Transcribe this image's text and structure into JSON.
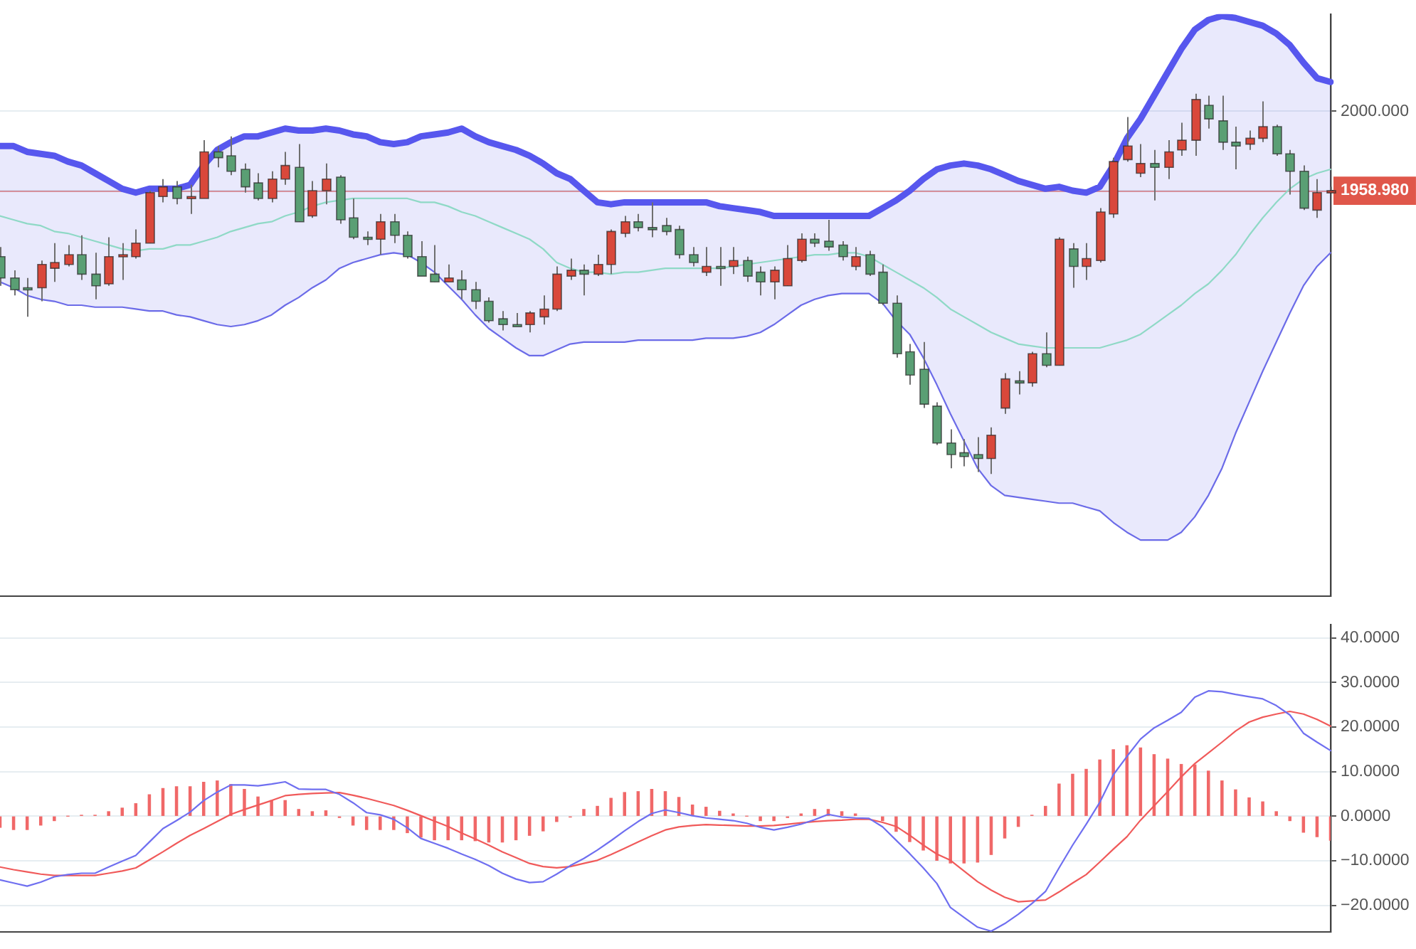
{
  "chart_data": [
    {
      "type": "candlestick",
      "categories": [
        null,
        null,
        null,
        null,
        null,
        null,
        null,
        null,
        null,
        null,
        null,
        null,
        null,
        null,
        null,
        null,
        null,
        null,
        null,
        null,
        null,
        null,
        null,
        null,
        null,
        null,
        null,
        null,
        null,
        null,
        null,
        null,
        null,
        null,
        null,
        null,
        null,
        null,
        null,
        null,
        null,
        null,
        null,
        null,
        null,
        null,
        null,
        null,
        null,
        null,
        null,
        null,
        null,
        null,
        null,
        null,
        null,
        null,
        null,
        null,
        null,
        null,
        null,
        null,
        null,
        null,
        null,
        null,
        null,
        null,
        null,
        null,
        null,
        null,
        null,
        null,
        null,
        null,
        null,
        null,
        null,
        null,
        null,
        null,
        null,
        null,
        null,
        null,
        null,
        null,
        null,
        null,
        null,
        null,
        null,
        null,
        null,
        null,
        null
      ],
      "ohlc": [
        [
          1925,
          1930,
          1910,
          1914
        ],
        [
          1914,
          1918,
          1905,
          1908
        ],
        [
          1909,
          1914,
          1894,
          1908
        ],
        [
          1909,
          1923,
          1902,
          1921
        ],
        [
          1919,
          1932,
          1912,
          1922
        ],
        [
          1921,
          1931,
          1920,
          1926
        ],
        [
          1926,
          1936,
          1913,
          1916
        ],
        [
          1916,
          1927,
          1903,
          1910
        ],
        [
          1911,
          1935,
          1910,
          1925
        ],
        [
          1925,
          1932,
          1913,
          1926
        ],
        [
          1925,
          1939,
          1924,
          1932
        ],
        [
          1932,
          1959,
          1932,
          1958
        ],
        [
          1956,
          1965,
          1953,
          1961
        ],
        [
          1961,
          1964,
          1952,
          1955
        ],
        [
          1955,
          1962,
          1947,
          1956
        ],
        [
          1955,
          1985,
          1955,
          1979
        ],
        [
          1979,
          1982,
          1971,
          1976
        ],
        [
          1977,
          1987,
          1967,
          1969
        ],
        [
          1970,
          1973,
          1958,
          1961
        ],
        [
          1963,
          1968,
          1954,
          1955
        ],
        [
          1955,
          1969,
          1953,
          1965
        ],
        [
          1965,
          1979,
          1962,
          1972
        ],
        [
          1971,
          1983,
          1943,
          1943
        ],
        [
          1946,
          1964,
          1945,
          1959
        ],
        [
          1959,
          1973,
          1952,
          1965
        ],
        [
          1966,
          1967,
          1942,
          1944
        ],
        [
          1945,
          1955,
          1934,
          1935
        ],
        [
          1935,
          1938,
          1931,
          1935
        ],
        [
          1934,
          1947,
          1926,
          1943
        ],
        [
          1943,
          1947,
          1932,
          1936
        ],
        [
          1936,
          1938,
          1924,
          1925
        ],
        [
          1925,
          1933,
          1915,
          1915
        ],
        [
          1916,
          1931,
          1912,
          1912
        ],
        [
          1912,
          1921,
          1912,
          1914
        ],
        [
          1913,
          1918,
          1903,
          1908
        ],
        [
          1908,
          1912,
          1898,
          1902
        ],
        [
          1902,
          1904,
          1891,
          1892
        ],
        [
          1893,
          1897,
          1887,
          1890
        ],
        [
          1890,
          1896,
          1889,
          1890
        ],
        [
          1890,
          1897,
          1886,
          1896
        ],
        [
          1894,
          1905,
          1890,
          1898
        ],
        [
          1898,
          1920,
          1897,
          1916
        ],
        [
          1915,
          1924,
          1913,
          1918
        ],
        [
          1918,
          1921,
          1905,
          1916
        ],
        [
          1916,
          1926,
          1915,
          1921
        ],
        [
          1921,
          1939,
          1916,
          1938
        ],
        [
          1937,
          1946,
          1935,
          1943
        ],
        [
          1943,
          1947,
          1938,
          1940
        ],
        [
          1940,
          1953,
          1935,
          1940
        ],
        [
          1941,
          1945,
          1936,
          1938
        ],
        [
          1939,
          1941,
          1924,
          1926
        ],
        [
          1926,
          1930,
          1920,
          1922
        ],
        [
          1917,
          1930,
          1915,
          1920
        ],
        [
          1920,
          1930,
          1910,
          1920
        ],
        [
          1920,
          1930,
          1916,
          1923
        ],
        [
          1923,
          1925,
          1912,
          1915
        ],
        [
          1917,
          1920,
          1905,
          1912
        ],
        [
          1912,
          1920,
          1903,
          1918
        ],
        [
          1910,
          1931,
          1910,
          1924
        ],
        [
          1923,
          1937,
          1922,
          1934
        ],
        [
          1934,
          1937,
          1930,
          1932
        ],
        [
          1933,
          1944,
          1928,
          1930
        ],
        [
          1931,
          1933,
          1923,
          1925
        ],
        [
          1920,
          1930,
          1918,
          1925
        ],
        [
          1926,
          1928,
          1915,
          1916
        ],
        [
          1917,
          1921,
          1900,
          1901
        ],
        [
          1901,
          1905,
          1873,
          1875
        ],
        [
          1876,
          1880,
          1859,
          1864
        ],
        [
          1867,
          1881,
          1847,
          1849
        ],
        [
          1848,
          1850,
          1828,
          1829
        ],
        [
          1829,
          1836,
          1816,
          1823
        ],
        [
          1824,
          1831,
          1817,
          1822
        ],
        [
          1823,
          1832,
          1814,
          1821
        ],
        [
          1821,
          1837,
          1813,
          1833
        ],
        [
          1847,
          1865,
          1844,
          1862
        ],
        [
          1861,
          1866,
          1854,
          1861
        ],
        [
          1860,
          1876,
          1858,
          1875
        ],
        [
          1875,
          1886,
          1868,
          1869
        ],
        [
          1869,
          1935,
          1869,
          1934
        ],
        [
          1929,
          1932,
          1909,
          1920
        ],
        [
          1920,
          1932,
          1913,
          1924
        ],
        [
          1923,
          1950,
          1922,
          1948
        ],
        [
          1947,
          1976,
          1945,
          1974
        ],
        [
          1975,
          1997,
          1974,
          1982
        ],
        [
          1968,
          1983,
          1966,
          1973
        ],
        [
          1973,
          1980,
          1954,
          1971
        ],
        [
          1971,
          1985,
          1965,
          1979
        ],
        [
          1980,
          1994,
          1977,
          1985
        ],
        [
          1985,
          2009,
          1977,
          2006
        ],
        [
          2003,
          2008,
          1991,
          1996
        ],
        [
          1995,
          2008,
          1980,
          1984
        ],
        [
          1984,
          1992,
          1970,
          1982
        ],
        [
          1983,
          1990,
          1980,
          1986
        ],
        [
          1986,
          2005,
          1984,
          1992
        ],
        [
          1992,
          1993,
          1977,
          1978
        ],
        [
          1978,
          1980,
          1957,
          1969
        ],
        [
          1969,
          1972,
          1949,
          1950
        ],
        [
          1949,
          1965,
          1945,
          1958
        ],
        [
          1958.5,
          1961,
          1958,
          1958.98
        ]
      ],
      "colors": [
        "#5a9f74",
        "#5a9f74",
        "#5a9f74",
        "#d9483b",
        "#d9483b",
        "#d9483b",
        "#5a9f74",
        "#5a9f74",
        "#d9483b",
        "#d9483b",
        "#d9483b",
        "#d9483b",
        "#d9483b",
        "#5a9f74",
        "#d9483b",
        "#d9483b",
        "#5a9f74",
        "#5a9f74",
        "#5a9f74",
        "#5a9f74",
        "#d9483b",
        "#d9483b",
        "#5a9f74",
        "#d9483b",
        "#d9483b",
        "#5a9f74",
        "#5a9f74",
        "#5a9f74",
        "#d9483b",
        "#5a9f74",
        "#5a9f74",
        "#5a9f74",
        "#5a9f74",
        "#d9483b",
        "#5a9f74",
        "#5a9f74",
        "#5a9f74",
        "#5a9f74",
        "#5a9f74",
        "#d9483b",
        "#d9483b",
        "#d9483b",
        "#d9483b",
        "#5a9f74",
        "#d9483b",
        "#d9483b",
        "#d9483b",
        "#5a9f74",
        "#5a9f74",
        "#5a9f74",
        "#5a9f74",
        "#5a9f74",
        "#d9483b",
        "#5a9f74",
        "#d9483b",
        "#5a9f74",
        "#5a9f74",
        "#d9483b",
        "#d9483b",
        "#d9483b",
        "#5a9f74",
        "#5a9f74",
        "#5a9f74",
        "#d9483b",
        "#5a9f74",
        "#5a9f74",
        "#5a9f74",
        "#5a9f74",
        "#5a9f74",
        "#5a9f74",
        "#5a9f74",
        "#5a9f74",
        "#5a9f74",
        "#d9483b",
        "#d9483b",
        "#5a9f74",
        "#d9483b",
        "#5a9f74",
        "#d9483b",
        "#5a9f74",
        "#d9483b",
        "#d9483b",
        "#d9483b",
        "#d9483b",
        "#d9483b",
        "#5a9f74",
        "#d9483b",
        "#d9483b",
        "#d9483b",
        "#5a9f74",
        "#5a9f74",
        "#5a9f74",
        "#d9483b",
        "#d9483b",
        "#5a9f74",
        "#5a9f74",
        "#5a9f74",
        "#d9483b",
        "#d9483b"
      ],
      "series": [
        {
          "type": "line",
          "color": "#5757ee",
          "values": [
            1982,
            1982,
            1979,
            1978,
            1977,
            1974,
            1972,
            1968,
            1964,
            1960,
            1958,
            1960,
            1960,
            1960,
            1962,
            1972,
            1980,
            1984,
            1987,
            1987,
            1989,
            1991,
            1990,
            1990,
            1991,
            1990,
            1988,
            1987,
            1984,
            1983,
            1984,
            1987,
            1988,
            1989,
            1991,
            1987,
            1984,
            1982,
            1980,
            1977,
            1973,
            1968,
            1965,
            1959,
            1953,
            1952,
            1953,
            1953,
            1953,
            1953,
            1953,
            1953,
            1953,
            1951,
            1950,
            1949,
            1948,
            1946,
            1946,
            1946,
            1946,
            1946,
            1946,
            1946,
            1946,
            1950,
            1954,
            1959,
            1965,
            1970,
            1972,
            1973,
            1972,
            1970,
            1967,
            1964,
            1962,
            1960,
            1961,
            1959,
            1958,
            1961,
            1972,
            1986,
            1996,
            2008,
            2020,
            2032,
            2042,
            2047,
            2049,
            2048,
            2046,
            2044,
            2040,
            2034,
            2025,
            2017,
            2015
          ]
        },
        {
          "type": "line",
          "color": "#8fd9c6",
          "values": [
            1946,
            1944,
            1942,
            1941,
            1938,
            1937,
            1935,
            1933,
            1931,
            1929,
            1928,
            1929,
            1929,
            1931,
            1931,
            1933,
            1935,
            1938,
            1940,
            1942,
            1943,
            1946,
            1948,
            1951,
            1953,
            1954,
            1955,
            1955,
            1955,
            1955,
            1955,
            1953,
            1953,
            1951,
            1948,
            1946,
            1943,
            1940,
            1937,
            1934,
            1929,
            1922,
            1919,
            1917,
            1917,
            1916,
            1917,
            1917,
            1918,
            1919,
            1919,
            1919,
            1919,
            1919,
            1920,
            1921,
            1922,
            1923,
            1924,
            1925,
            1926,
            1926,
            1927,
            1927,
            1925,
            1921,
            1917,
            1913,
            1909,
            1904,
            1898,
            1894,
            1890,
            1886,
            1883,
            1880,
            1879,
            1878,
            1878,
            1878,
            1878,
            1878,
            1880,
            1882,
            1885,
            1890,
            1895,
            1900,
            1906,
            1911,
            1918,
            1926,
            1936,
            1945,
            1953,
            1960,
            1965,
            1968,
            1970
          ],
          "upper": [
            1982,
            1982,
            1979,
            1978,
            1977,
            1974,
            1972,
            1968,
            1964,
            1960,
            1958,
            1960,
            1960,
            1960,
            1962,
            1972,
            1980,
            1984,
            1987,
            1987,
            1989,
            1991,
            1990,
            1990,
            1991,
            1990,
            1988,
            1987,
            1984,
            1983,
            1984,
            1987,
            1988,
            1989,
            1991,
            1987,
            1984,
            1982,
            1980,
            1977,
            1973,
            1968,
            1965,
            1959,
            1953,
            1952,
            1953,
            1953,
            1953,
            1953,
            1953,
            1953,
            1953,
            1951,
            1950,
            1949,
            1948,
            1946,
            1946,
            1946,
            1946,
            1946,
            1946,
            1946,
            1946,
            1950,
            1954,
            1959,
            1965,
            1970,
            1972,
            1973,
            1972,
            1970,
            1967,
            1964,
            1962,
            1960,
            1961,
            1959,
            1958,
            1961,
            1972,
            1986,
            1996,
            2008,
            2020,
            2032,
            2042,
            2047,
            2049,
            2048,
            2046,
            2044,
            2040,
            2034,
            2025,
            2017,
            2015
          ],
          "lower": [
            1912,
            1909,
            1905,
            1903,
            1902,
            1900,
            1900,
            1899,
            1899,
            1899,
            1898,
            1897,
            1897,
            1895,
            1894,
            1892,
            1890,
            1889,
            1890,
            1892,
            1895,
            1900,
            1904,
            1909,
            1913,
            1919,
            1922,
            1924,
            1926,
            1927,
            1926,
            1922,
            1917,
            1910,
            1903,
            1895,
            1888,
            1883,
            1878,
            1874,
            1874,
            1877,
            1880,
            1881,
            1881,
            1881,
            1881,
            1882,
            1882,
            1882,
            1882,
            1882,
            1883,
            1883,
            1883,
            1884,
            1886,
            1890,
            1895,
            1900,
            1903,
            1905,
            1906,
            1906,
            1906,
            1901,
            1892,
            1885,
            1873,
            1859,
            1844,
            1830,
            1816,
            1807,
            1802,
            1801,
            1800,
            1799,
            1798,
            1798,
            1796,
            1794,
            1788,
            1783,
            1779,
            1779,
            1779,
            1783,
            1791,
            1802,
            1816,
            1834,
            1850,
            1866,
            1881,
            1896,
            1910,
            1920,
            1927
          ]
        },
        {
          "type": "line",
          "color": "#6b6be8",
          "values": [
            1912,
            1909,
            1905,
            1903,
            1902,
            1900,
            1900,
            1899,
            1899,
            1899,
            1898,
            1897,
            1897,
            1895,
            1894,
            1892,
            1890,
            1889,
            1890,
            1892,
            1895,
            1900,
            1904,
            1909,
            1913,
            1919,
            1922,
            1924,
            1926,
            1927,
            1926,
            1922,
            1917,
            1910,
            1903,
            1895,
            1888,
            1883,
            1878,
            1874,
            1874,
            1877,
            1880,
            1881,
            1881,
            1881,
            1881,
            1882,
            1882,
            1882,
            1882,
            1882,
            1883,
            1883,
            1883,
            1884,
            1886,
            1890,
            1895,
            1900,
            1903,
            1905,
            1906,
            1906,
            1906,
            1901,
            1892,
            1885,
            1873,
            1859,
            1844,
            1830,
            1816,
            1807,
            1802,
            1801,
            1800,
            1799,
            1798,
            1798,
            1796,
            1794,
            1788,
            1783,
            1779,
            1779,
            1779,
            1783,
            1791,
            1802,
            1816,
            1834,
            1850,
            1866,
            1881,
            1896,
            1910,
            1920,
            1927
          ]
        }
      ],
      "ylim": [
        1750,
        2050
      ],
      "yticks": [
        {
          "value": 2000,
          "label": "2000.000"
        },
        {
          "value": 1958.98,
          "label": "1958.980"
        }
      ],
      "ref_lines": [
        {
          "axis": "y",
          "value": 1958.98,
          "color": "#e0574a"
        }
      ],
      "grid": "y",
      "tick_labels": "y"
    },
    {
      "type": "bar",
      "categories": [
        null,
        null,
        null,
        null,
        null,
        null,
        null,
        null,
        null,
        null,
        null,
        null,
        null,
        null,
        null,
        null,
        null,
        null,
        null,
        null,
        null,
        null,
        null,
        null,
        null,
        null,
        null,
        null,
        null,
        null,
        null,
        null,
        null,
        null,
        null,
        null,
        null,
        null,
        null,
        null,
        null,
        null,
        null,
        null,
        null,
        null,
        null,
        null,
        null,
        null,
        null,
        null,
        null,
        null,
        null,
        null,
        null,
        null,
        null,
        null,
        null,
        null,
        null,
        null,
        null,
        null,
        null,
        null,
        null,
        null,
        null,
        null,
        null,
        null,
        null,
        null,
        null,
        null,
        null,
        null,
        null,
        null,
        null,
        null,
        null,
        null,
        null,
        null,
        null,
        null,
        null,
        null,
        null,
        null,
        null,
        null,
        null,
        null,
        null
      ],
      "series": [
        {
          "type": "bar",
          "color": "#f06868",
          "values": [
            -2.5,
            -3.0,
            -3.0,
            -2.0,
            -1.0,
            0,
            0.2,
            0.2,
            1.0,
            1.8,
            2.8,
            4.8,
            6.2,
            6.6,
            6.6,
            7.6,
            7.9,
            7.1,
            6.0,
            4.3,
            3.5,
            3.5,
            1.5,
            1.0,
            1.2,
            -0.3,
            -2.0,
            -3.0,
            -3.0,
            -3.0,
            -3.7,
            -4.7,
            -5.3,
            -5.3,
            -5.3,
            -5.5,
            -5.8,
            -5.8,
            -5.3,
            -4.3,
            -3.3,
            -1.2,
            -0.2,
            1.5,
            2.2,
            4.0,
            5.3,
            5.5,
            6.0,
            5.5,
            4.2,
            2.5,
            2.0,
            1.1,
            0.5,
            0,
            -1.0,
            -1.0,
            -0.3,
            0.5,
            1.5,
            1.5,
            1.0,
            0.5,
            null,
            -1.0,
            -3.4,
            -5.7,
            -7.6,
            -9.9,
            -10.5,
            -10.5,
            -10.3,
            -8.6,
            -4.9,
            -2.3,
            0.2,
            2.2,
            7.2,
            9.4,
            10.5,
            12.6,
            14.9,
            15.8,
            15.3,
            13.8,
            12.8,
            11.6,
            11.5,
            10.1,
            7.9,
            5.9,
            4.1,
            3.2,
            1.0,
            -1.0,
            -3.6,
            -4.6,
            -5.4
          ]
        },
        {
          "type": "line",
          "color": "#6f6ff0",
          "values": [
            -14.3,
            -15.0,
            -15.7,
            -14.8,
            -13.6,
            -13.1,
            -12.8,
            -12.8,
            -11.4,
            -10.1,
            -8.8,
            -5.8,
            -2.8,
            -1.0,
            0.9,
            3.5,
            5.4,
            7.0,
            7.0,
            6.8,
            7.2,
            7.7,
            6.1,
            6.0,
            6.0,
            4.9,
            3.0,
            0.8,
            0.3,
            -0.7,
            -2.6,
            -5.0,
            -6.1,
            -7.2,
            -8.5,
            -9.7,
            -11.1,
            -12.8,
            -14.1,
            -14.9,
            -14.7,
            -13.0,
            -11.1,
            -9.5,
            -7.6,
            -5.5,
            -3.3,
            -1.2,
            0.6,
            1.4,
            0.8,
            0.1,
            -0.4,
            -0.7,
            -1.0,
            -1.6,
            -2.5,
            -3.1,
            -2.5,
            -1.8,
            -0.8,
            0.4,
            -0.2,
            -0.4,
            -0.5,
            -2.4,
            -5.4,
            -8.4,
            -11.6,
            -15.1,
            -20.5,
            -22.7,
            -24.9,
            -25.8,
            -24.1,
            -22.0,
            -19.6,
            -16.9,
            -11.6,
            -6.5,
            -1.8,
            3.1,
            9.3,
            13.4,
            17.3,
            19.8,
            21.5,
            23.3,
            26.7,
            28.1,
            27.9,
            27.3,
            26.8,
            26.3,
            24.8,
            22.7,
            18.6,
            16.6,
            14.7
          ]
        },
        {
          "type": "line",
          "color": "#f05a5a",
          "values": [
            -11.4,
            -12.0,
            -12.5,
            -13.0,
            -13.3,
            -13.3,
            -13.3,
            -13.3,
            -12.8,
            -12.3,
            -11.6,
            -9.8,
            -8.0,
            -6.1,
            -4.3,
            -2.8,
            -1.2,
            0.4,
            1.5,
            2.5,
            3.5,
            4.6,
            4.9,
            5.1,
            5.2,
            5.3,
            4.7,
            4.0,
            3.2,
            2.4,
            1.3,
            0.1,
            -1.1,
            -2.3,
            -3.8,
            -5.1,
            -6.5,
            -8.0,
            -9.3,
            -10.6,
            -11.3,
            -11.6,
            -11.3,
            -10.6,
            -9.9,
            -8.6,
            -7.2,
            -5.8,
            -4.4,
            -3.1,
            -2.4,
            -2.1,
            -1.9,
            -2.0,
            -2.1,
            -2.2,
            -2.2,
            -2.1,
            -1.8,
            -1.5,
            -1.2,
            -1.0,
            -0.9,
            -0.7,
            -0.7,
            -1.4,
            -2.3,
            -4.3,
            -6.5,
            -8.5,
            -9.9,
            -12.3,
            -14.7,
            -16.6,
            -18.2,
            -19.2,
            -19.0,
            -18.8,
            -17.0,
            -15.0,
            -13.1,
            -10.3,
            -7.4,
            -4.6,
            -0.9,
            2.3,
            5.5,
            8.8,
            11.8,
            14.2,
            16.6,
            19.1,
            21.1,
            22.2,
            22.9,
            23.5,
            22.9,
            21.7,
            20.2
          ]
        }
      ],
      "ylim": [
        -26,
        43
      ],
      "yticks": [
        {
          "value": 40,
          "label": "40.0000"
        },
        {
          "value": 30,
          "label": "30.0000"
        },
        {
          "value": 20,
          "label": "20.0000"
        },
        {
          "value": 10,
          "label": "10.0000"
        },
        {
          "value": 0,
          "label": "0.0000"
        },
        {
          "value": -10,
          "label": "−10.0000"
        },
        {
          "value": -20,
          "label": "−20.0000"
        }
      ],
      "grid": "y",
      "tick_labels": "y"
    }
  ]
}
